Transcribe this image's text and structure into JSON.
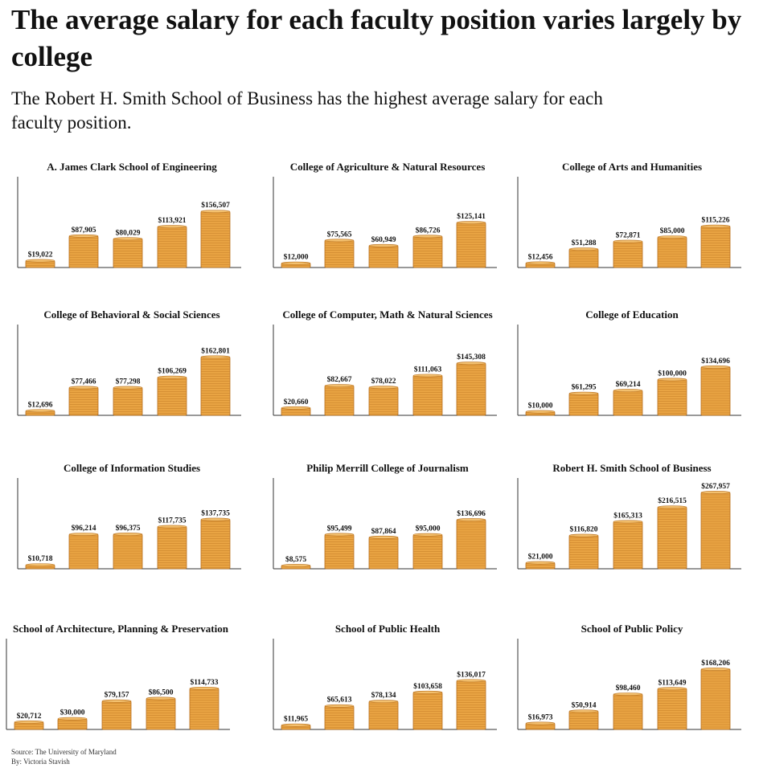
{
  "headline": "The average salary for each faculty position varies largely by college",
  "subheadline": "The Robert H. Smith School of Business has the highest average salary for each faculty position.",
  "footer": {
    "source": "Source: The University of Maryland",
    "byline": "By: Victoria Stavish"
  },
  "colors": {
    "coin_fill": "#E9A443",
    "coin_edge": "#B86F1D",
    "coin_top": "#F3C06E",
    "axis": "#333333"
  },
  "chart_data": [
    {
      "type": "bar",
      "title": "A. James Clark School of Engineering",
      "values": [
        19022,
        87905,
        80029,
        113921,
        156507
      ],
      "labels": [
        "$19,022",
        "$87,905",
        "$80,029",
        "$113,921",
        "$156,507"
      ]
    },
    {
      "type": "bar",
      "title": "College of Agriculture & Natural Resources",
      "values": [
        12000,
        75565,
        60949,
        86726,
        125141
      ],
      "labels": [
        "$12,000",
        "$75,565",
        "$60,949",
        "$86,726",
        "$125,141"
      ]
    },
    {
      "type": "bar",
      "title": "College of Arts and Humanities",
      "values": [
        12456,
        51288,
        72871,
        85000,
        115226
      ],
      "labels": [
        "$12,456",
        "$51,288",
        "$72,871",
        "$85,000",
        "$115,226"
      ]
    },
    {
      "type": "bar",
      "title": "College of Behavioral & Social Sciences",
      "values": [
        12696,
        77466,
        77298,
        106269,
        162801
      ],
      "labels": [
        "$12,696",
        "$77,466",
        "$77,298",
        "$106,269",
        "$162,801"
      ]
    },
    {
      "type": "bar",
      "title": "College of Computer, Math & Natural Sciences",
      "values": [
        20660,
        82667,
        78022,
        111063,
        145308
      ],
      "labels": [
        "$20,660",
        "$82,667",
        "$78,022",
        "$111,063",
        "$145,308"
      ]
    },
    {
      "type": "bar",
      "title": "College of Education",
      "values": [
        10000,
        61295,
        69214,
        100000,
        134696
      ],
      "labels": [
        "$10,000",
        "$61,295",
        "$69,214",
        "$100,000",
        "$134,696"
      ]
    },
    {
      "type": "bar",
      "title": "College of Information Studies",
      "values": [
        10718,
        96214,
        96375,
        117735,
        137735
      ],
      "labels": [
        "$10,718",
        "$96,214",
        "$96,375",
        "$117,735",
        "$137,735"
      ]
    },
    {
      "type": "bar",
      "title": "Philip Merrill College of Journalism",
      "values": [
        8575,
        95499,
        87864,
        95000,
        136696
      ],
      "labels": [
        "$8,575",
        "$95,499",
        "$87,864",
        "$95,000",
        "$136,696"
      ]
    },
    {
      "type": "bar",
      "title": "Robert H. Smith School of Business",
      "values": [
        21000,
        116820,
        165313,
        216515,
        267957
      ],
      "labels": [
        "$21,000",
        "$116,820",
        "$165,313",
        "$216,515",
        "$267,957"
      ]
    },
    {
      "type": "bar",
      "title": "School of Architecture, Planning & Preservation",
      "values": [
        20712,
        30000,
        79157,
        86500,
        114733
      ],
      "labels": [
        "$20,712",
        "$30,000",
        "$79,157",
        "$86,500",
        "$114,733"
      ]
    },
    {
      "type": "bar",
      "title": "School of Public Health",
      "values": [
        11965,
        65613,
        78134,
        103658,
        136017
      ],
      "labels": [
        "$11,965",
        "$65,613",
        "$78,134",
        "$103,658",
        "$136,017"
      ]
    },
    {
      "type": "bar",
      "title": "School of Public Policy",
      "values": [
        16973,
        50914,
        98460,
        113649,
        168206
      ],
      "labels": [
        "$16,973",
        "$50,914",
        "$98,460",
        "$113,649",
        "$168,206"
      ]
    }
  ]
}
